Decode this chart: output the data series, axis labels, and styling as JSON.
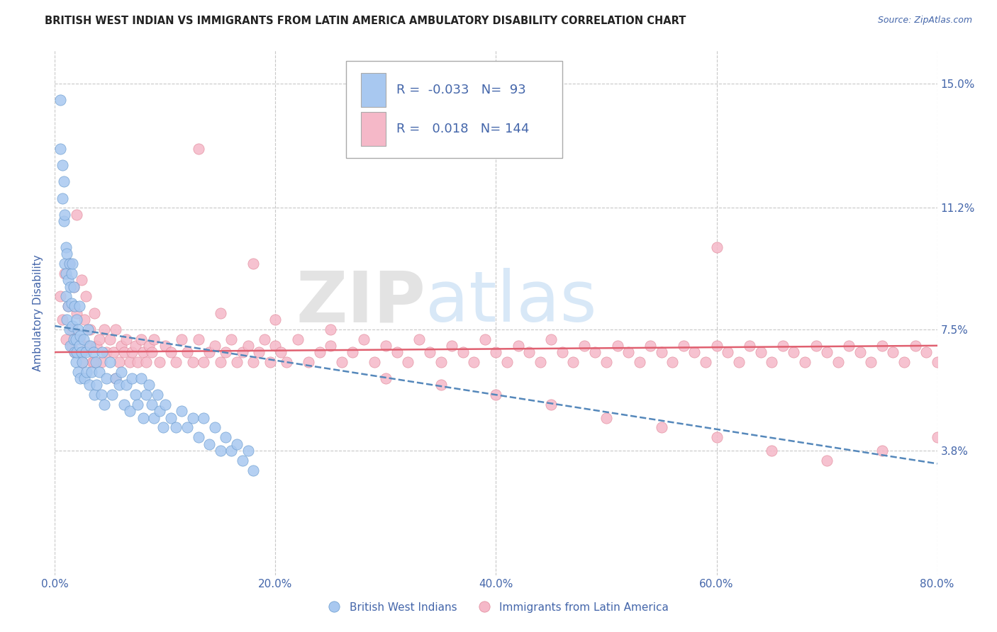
{
  "title": "BRITISH WEST INDIAN VS IMMIGRANTS FROM LATIN AMERICA AMBULATORY DISABILITY CORRELATION CHART",
  "source_text": "Source: ZipAtlas.com",
  "ylabel": "Ambulatory Disability",
  "xlim": [
    0.0,
    0.8
  ],
  "ylim": [
    0.0,
    0.16
  ],
  "yticks": [
    0.038,
    0.075,
    0.112,
    0.15
  ],
  "ytick_labels": [
    "3.8%",
    "7.5%",
    "11.2%",
    "15.0%"
  ],
  "xticks": [
    0.0,
    0.2,
    0.4,
    0.6,
    0.8
  ],
  "xtick_labels": [
    "0.0%",
    "20.0%",
    "40.0%",
    "60.0%",
    "80.0%"
  ],
  "background_color": "#ffffff",
  "grid_color": "#c8c8c8",
  "watermark1": "ZIP",
  "watermark2": "atlas",
  "series1_label": "British West Indians",
  "series1_color": "#a8c8f0",
  "series1_edge_color": "#6699cc",
  "series1_R": "-0.033",
  "series1_N": "93",
  "series1_line_color": "#5588bb",
  "series2_label": "Immigrants from Latin America",
  "series2_color": "#f5b8c8",
  "series2_edge_color": "#e08898",
  "series2_R": "0.018",
  "series2_N": "144",
  "series2_line_color": "#e06070",
  "title_color": "#222222",
  "axis_color": "#4466aa",
  "legend_color": "#4466aa",
  "trendline1_x0": 0.0,
  "trendline1_y0": 0.076,
  "trendline1_x1": 0.8,
  "trendline1_y1": 0.034,
  "trendline2_x0": 0.0,
  "trendline2_y0": 0.068,
  "trendline2_x1": 0.8,
  "trendline2_y1": 0.07,
  "series1_x": [
    0.005,
    0.005,
    0.007,
    0.007,
    0.008,
    0.008,
    0.009,
    0.009,
    0.01,
    0.01,
    0.01,
    0.011,
    0.011,
    0.012,
    0.012,
    0.013,
    0.013,
    0.014,
    0.014,
    0.015,
    0.015,
    0.016,
    0.016,
    0.017,
    0.017,
    0.018,
    0.018,
    0.019,
    0.019,
    0.02,
    0.02,
    0.021,
    0.021,
    0.022,
    0.022,
    0.023,
    0.023,
    0.024,
    0.025,
    0.026,
    0.027,
    0.028,
    0.029,
    0.03,
    0.031,
    0.032,
    0.033,
    0.035,
    0.036,
    0.037,
    0.038,
    0.04,
    0.042,
    0.043,
    0.045,
    0.047,
    0.05,
    0.052,
    0.055,
    0.058,
    0.06,
    0.063,
    0.065,
    0.068,
    0.07,
    0.073,
    0.075,
    0.078,
    0.08,
    0.083,
    0.085,
    0.088,
    0.09,
    0.093,
    0.095,
    0.098,
    0.1,
    0.105,
    0.11,
    0.115,
    0.12,
    0.125,
    0.13,
    0.135,
    0.14,
    0.145,
    0.15,
    0.155,
    0.16,
    0.165,
    0.17,
    0.175,
    0.18
  ],
  "series1_y": [
    0.13,
    0.145,
    0.125,
    0.115,
    0.108,
    0.12,
    0.095,
    0.11,
    0.1,
    0.092,
    0.085,
    0.098,
    0.078,
    0.09,
    0.082,
    0.095,
    0.075,
    0.088,
    0.07,
    0.092,
    0.083,
    0.076,
    0.095,
    0.072,
    0.088,
    0.068,
    0.082,
    0.072,
    0.065,
    0.078,
    0.068,
    0.075,
    0.062,
    0.07,
    0.082,
    0.06,
    0.073,
    0.068,
    0.065,
    0.072,
    0.06,
    0.068,
    0.062,
    0.075,
    0.058,
    0.07,
    0.062,
    0.068,
    0.055,
    0.065,
    0.058,
    0.062,
    0.055,
    0.068,
    0.052,
    0.06,
    0.065,
    0.055,
    0.06,
    0.058,
    0.062,
    0.052,
    0.058,
    0.05,
    0.06,
    0.055,
    0.052,
    0.06,
    0.048,
    0.055,
    0.058,
    0.052,
    0.048,
    0.055,
    0.05,
    0.045,
    0.052,
    0.048,
    0.045,
    0.05,
    0.045,
    0.048,
    0.042,
    0.048,
    0.04,
    0.045,
    0.038,
    0.042,
    0.038,
    0.04,
    0.035,
    0.038,
    0.032
  ],
  "series2_x": [
    0.005,
    0.007,
    0.009,
    0.01,
    0.012,
    0.013,
    0.015,
    0.017,
    0.018,
    0.02,
    0.022,
    0.024,
    0.025,
    0.027,
    0.028,
    0.03,
    0.032,
    0.034,
    0.036,
    0.038,
    0.04,
    0.042,
    0.045,
    0.047,
    0.05,
    0.053,
    0.055,
    0.058,
    0.06,
    0.063,
    0.065,
    0.068,
    0.07,
    0.073,
    0.075,
    0.078,
    0.08,
    0.083,
    0.085,
    0.088,
    0.09,
    0.095,
    0.1,
    0.105,
    0.11,
    0.115,
    0.12,
    0.125,
    0.13,
    0.135,
    0.14,
    0.145,
    0.15,
    0.155,
    0.16,
    0.165,
    0.17,
    0.175,
    0.18,
    0.185,
    0.19,
    0.195,
    0.2,
    0.205,
    0.21,
    0.22,
    0.23,
    0.24,
    0.25,
    0.26,
    0.27,
    0.28,
    0.29,
    0.3,
    0.31,
    0.32,
    0.33,
    0.34,
    0.35,
    0.36,
    0.37,
    0.38,
    0.39,
    0.4,
    0.41,
    0.42,
    0.43,
    0.44,
    0.45,
    0.46,
    0.47,
    0.48,
    0.49,
    0.5,
    0.51,
    0.52,
    0.53,
    0.54,
    0.55,
    0.56,
    0.57,
    0.58,
    0.59,
    0.6,
    0.61,
    0.62,
    0.63,
    0.64,
    0.65,
    0.66,
    0.67,
    0.68,
    0.69,
    0.7,
    0.71,
    0.72,
    0.73,
    0.74,
    0.75,
    0.76,
    0.77,
    0.78,
    0.79,
    0.8,
    0.35,
    0.4,
    0.45,
    0.5,
    0.55,
    0.6,
    0.65,
    0.7,
    0.75,
    0.8,
    0.15,
    0.2,
    0.25,
    0.3,
    0.015,
    0.025,
    0.035,
    0.055,
    0.13,
    0.18,
    0.6,
    0.02
  ],
  "series2_y": [
    0.085,
    0.078,
    0.092,
    0.072,
    0.082,
    0.095,
    0.075,
    0.088,
    0.068,
    0.08,
    0.072,
    0.09,
    0.065,
    0.078,
    0.085,
    0.07,
    0.075,
    0.065,
    0.08,
    0.07,
    0.072,
    0.065,
    0.075,
    0.068,
    0.072,
    0.068,
    0.075,
    0.065,
    0.07,
    0.068,
    0.072,
    0.065,
    0.068,
    0.07,
    0.065,
    0.072,
    0.068,
    0.065,
    0.07,
    0.068,
    0.072,
    0.065,
    0.07,
    0.068,
    0.065,
    0.072,
    0.068,
    0.065,
    0.072,
    0.065,
    0.068,
    0.07,
    0.065,
    0.068,
    0.072,
    0.065,
    0.068,
    0.07,
    0.065,
    0.068,
    0.072,
    0.065,
    0.07,
    0.068,
    0.065,
    0.072,
    0.065,
    0.068,
    0.07,
    0.065,
    0.068,
    0.072,
    0.065,
    0.07,
    0.068,
    0.065,
    0.072,
    0.068,
    0.065,
    0.07,
    0.068,
    0.065,
    0.072,
    0.068,
    0.065,
    0.07,
    0.068,
    0.065,
    0.072,
    0.068,
    0.065,
    0.07,
    0.068,
    0.065,
    0.07,
    0.068,
    0.065,
    0.07,
    0.068,
    0.065,
    0.07,
    0.068,
    0.065,
    0.07,
    0.068,
    0.065,
    0.07,
    0.068,
    0.065,
    0.07,
    0.068,
    0.065,
    0.07,
    0.068,
    0.065,
    0.07,
    0.068,
    0.065,
    0.07,
    0.068,
    0.065,
    0.07,
    0.068,
    0.065,
    0.058,
    0.055,
    0.052,
    0.048,
    0.045,
    0.042,
    0.038,
    0.035,
    0.038,
    0.042,
    0.08,
    0.078,
    0.075,
    0.06,
    0.07,
    0.068,
    0.065,
    0.06,
    0.13,
    0.095,
    0.1,
    0.11
  ]
}
